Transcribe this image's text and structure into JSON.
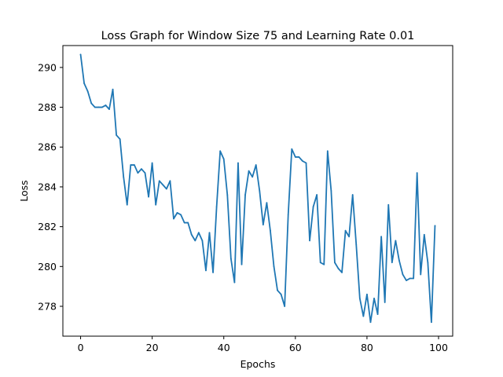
{
  "chart_data": {
    "type": "line",
    "title": "Loss Graph for Window Size 75 and Learning Rate 0.01",
    "xlabel": "Epochs",
    "ylabel": "Loss",
    "xlim": [
      -4.95,
      103.95
    ],
    "ylim": [
      276.5,
      291.1
    ],
    "xticks": [
      0,
      20,
      40,
      60,
      80,
      100
    ],
    "yticks": [
      278,
      280,
      282,
      284,
      286,
      288,
      290
    ],
    "grid": false,
    "series": [
      {
        "color": "#1f77b4",
        "x": [
          0,
          1,
          2,
          3,
          4,
          5,
          6,
          7,
          8,
          9,
          10,
          11,
          12,
          13,
          14,
          15,
          16,
          17,
          18,
          19,
          20,
          21,
          22,
          23,
          24,
          25,
          26,
          27,
          28,
          29,
          30,
          31,
          32,
          33,
          34,
          35,
          36,
          37,
          38,
          39,
          40,
          41,
          42,
          43,
          44,
          45,
          46,
          47,
          48,
          49,
          50,
          51,
          52,
          53,
          54,
          55,
          56,
          57,
          58,
          59,
          60,
          61,
          62,
          63,
          64,
          65,
          66,
          67,
          68,
          69,
          70,
          71,
          72,
          73,
          74,
          75,
          76,
          77,
          78,
          79,
          80,
          81,
          82,
          83,
          84,
          85,
          86,
          87,
          88,
          89,
          90,
          91,
          92,
          93,
          94,
          95,
          96,
          97,
          98,
          99
        ],
        "values": [
          290.65,
          289.2,
          288.8,
          288.2,
          288.0,
          288.0,
          288.0,
          288.1,
          287.9,
          288.9,
          286.6,
          286.4,
          284.5,
          283.1,
          285.1,
          285.1,
          284.7,
          284.9,
          284.7,
          283.5,
          285.2,
          283.1,
          284.3,
          284.1,
          283.9,
          284.3,
          282.4,
          282.7,
          282.6,
          282.2,
          282.2,
          281.6,
          281.3,
          281.7,
          281.3,
          279.8,
          281.7,
          279.7,
          283.0,
          285.8,
          285.4,
          283.6,
          280.4,
          279.2,
          285.2,
          280.1,
          283.6,
          284.8,
          284.5,
          285.1,
          283.8,
          282.1,
          283.2,
          281.8,
          280.0,
          278.8,
          278.6,
          278.0,
          282.6,
          285.9,
          285.5,
          285.5,
          285.3,
          285.2,
          281.3,
          283.0,
          283.6,
          280.2,
          280.1,
          285.8,
          283.8,
          280.2,
          279.9,
          279.7,
          281.8,
          281.5,
          283.6,
          281.1,
          278.4,
          277.5,
          278.6,
          277.2,
          278.4,
          277.6,
          281.5,
          278.2,
          283.1,
          280.2,
          281.3,
          280.3,
          279.6,
          279.3,
          279.4,
          279.4,
          284.7,
          279.6,
          281.6,
          280.2,
          277.2,
          282.05
        ]
      }
    ]
  }
}
